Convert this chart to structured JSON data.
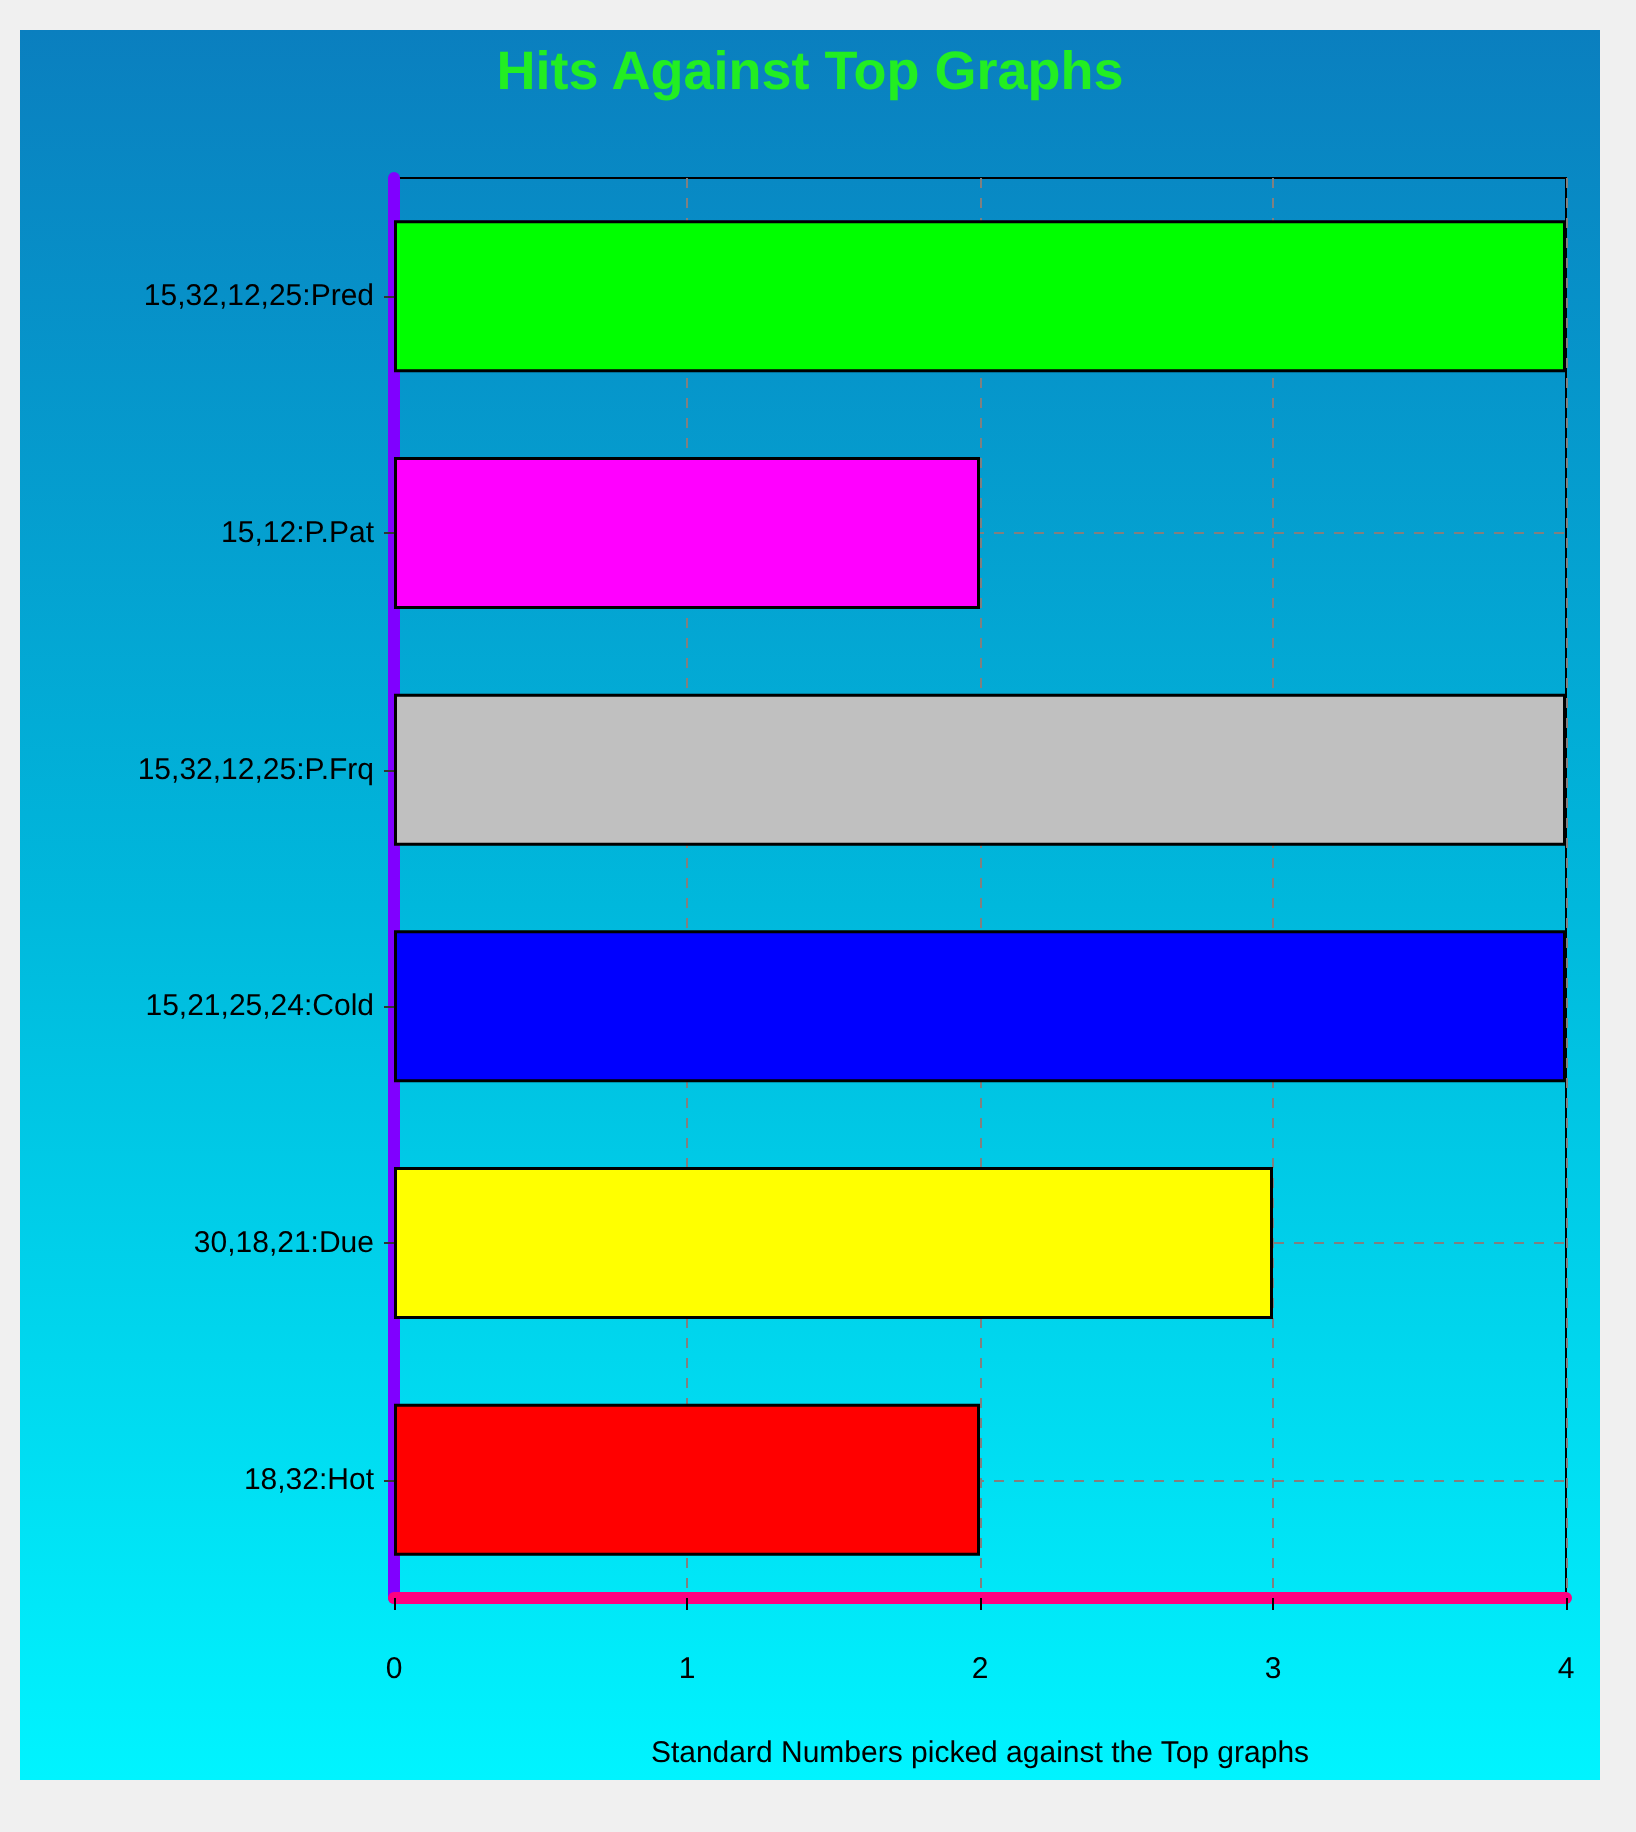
{
  "chart_data": {
    "type": "bar",
    "orientation": "horizontal",
    "title": "Hits Against Top Graphs",
    "xlabel": "Standard Numbers picked against the Top graphs",
    "categories": [
      "15,32,12,25:Pred",
      "15,12:P.Pat",
      "15,32,12,25:P.Frq",
      "15,21,25,24:Cold",
      "30,18,21:Due",
      "18,32:Hot"
    ],
    "values": [
      4,
      2,
      4,
      4,
      3,
      2
    ],
    "colors": [
      "#00ff00",
      "#ff00ff",
      "#c0c0c0",
      "#0000ff",
      "#ffff00",
      "#ff0000"
    ],
    "xlim": [
      0,
      4
    ],
    "xticks": [
      0,
      1,
      2,
      3,
      4
    ],
    "grid": true
  }
}
